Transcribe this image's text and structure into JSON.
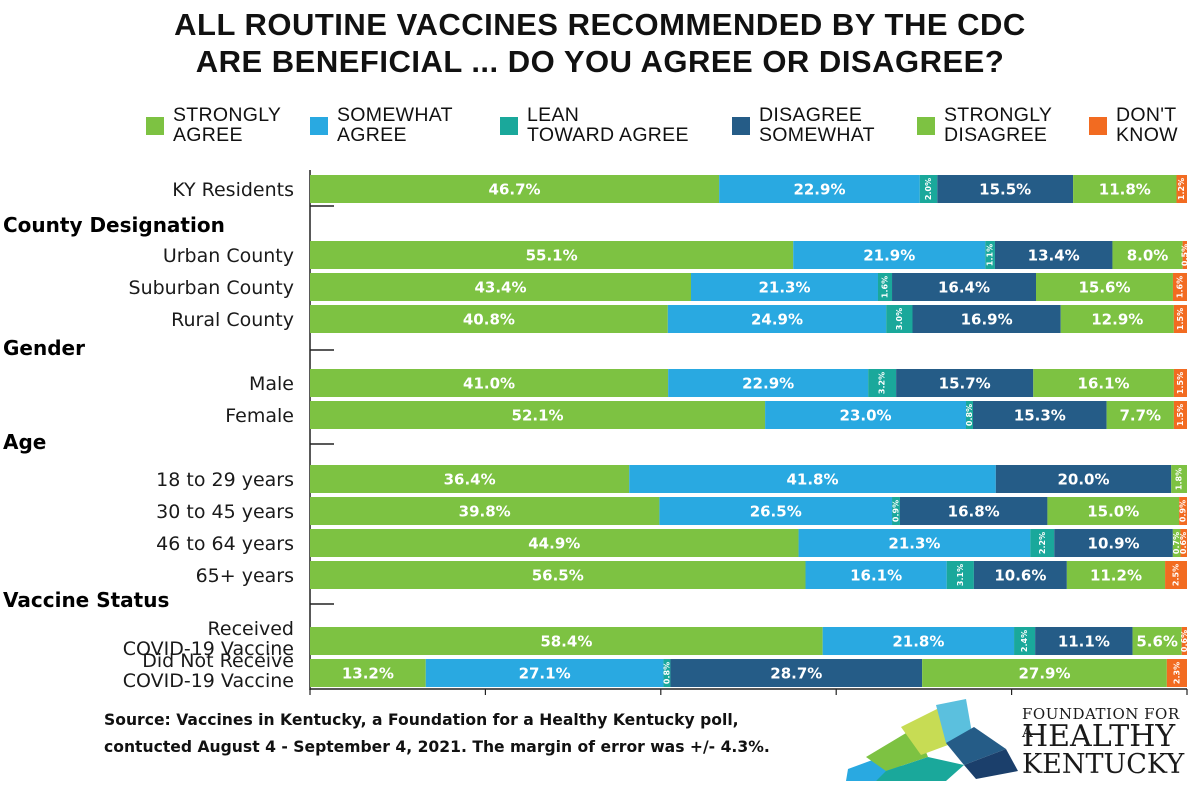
{
  "title": {
    "line1": "ALL ROUTINE VACCINES RECOMMENDED BY THE CDC",
    "line2": "ARE BENEFICIAL ... DO YOU AGREE OR DISAGREE?"
  },
  "legend": [
    {
      "label": "STRONGLY\nAGREE",
      "color": "#7dc242"
    },
    {
      "label": "SOMEWHAT\nAGREE",
      "color": "#29a9e1"
    },
    {
      "label": "LEAN\nTOWARD AGREE",
      "color": "#1aa89b"
    },
    {
      "label": "DISAGREE\nSOMEWHAT",
      "color": "#255c87"
    },
    {
      "label": "STRONGLY\nDISAGREE",
      "color": "#7dc242"
    },
    {
      "label": "DON'T\nKNOW",
      "color": "#f26b21"
    }
  ],
  "chart_data": {
    "type": "bar",
    "orientation": "horizontal-stacked-100",
    "series_colors": [
      "#7dc242",
      "#29a9e1",
      "#1aa89b",
      "#255c87",
      "#7dc242",
      "#f26b21"
    ],
    "groups": [
      {
        "label": "",
        "rows": [
          {
            "label": "KY Residents",
            "values": [
              46.7,
              22.9,
              2.0,
              15.5,
              11.8,
              1.2
            ]
          }
        ]
      },
      {
        "label": "County Designation",
        "rows": [
          {
            "label": "Urban County",
            "values": [
              55.1,
              21.9,
              1.1,
              13.4,
              8.0,
              0.5
            ]
          },
          {
            "label": "Suburban County",
            "values": [
              43.4,
              21.3,
              1.6,
              16.4,
              15.6,
              1.6
            ]
          },
          {
            "label": "Rural County",
            "values": [
              40.8,
              24.9,
              3.0,
              16.9,
              12.9,
              1.5
            ]
          }
        ]
      },
      {
        "label": "Gender",
        "rows": [
          {
            "label": "Male",
            "values": [
              41.0,
              22.9,
              3.2,
              15.7,
              16.1,
              1.5
            ]
          },
          {
            "label": "Female",
            "values": [
              52.1,
              23.0,
              0.8,
              15.3,
              7.7,
              1.5
            ]
          }
        ]
      },
      {
        "label": "Age",
        "rows": [
          {
            "label": "18 to 29 years",
            "values": [
              36.4,
              41.8,
              0,
              20.0,
              1.8,
              0
            ]
          },
          {
            "label": "30 to 45 years",
            "values": [
              39.8,
              26.5,
              0.9,
              16.8,
              15.0,
              0.9
            ]
          },
          {
            "label": "46 to 64 years",
            "values": [
              44.9,
              21.3,
              2.2,
              10.9,
              0.7,
              0.6
            ]
          },
          {
            "label": "65+ years",
            "values": [
              56.5,
              16.1,
              3.1,
              10.6,
              11.2,
              2.5
            ]
          }
        ]
      },
      {
        "label": "Vaccine Status",
        "rows": [
          {
            "label": "Received\nCOVID-19 Vaccine",
            "values": [
              58.4,
              21.8,
              2.4,
              11.1,
              5.6,
              0.6
            ]
          },
          {
            "label": "Did Not Receive\nCOVID-19 Vaccine",
            "values": [
              13.2,
              27.1,
              0.8,
              28.7,
              27.9,
              2.3
            ]
          }
        ]
      }
    ]
  },
  "source": {
    "line1": "Source: Vaccines in Kentucky, a Foundation for a Healthy Kentucky poll,",
    "line2": "contucted August 4 - September 4, 2021.  The margin of error was +/- 4.3%."
  },
  "logo": {
    "line1": "FOUNDATION FOR A",
    "line2": "HEALTHY",
    "line3": "KENTUCKY"
  }
}
